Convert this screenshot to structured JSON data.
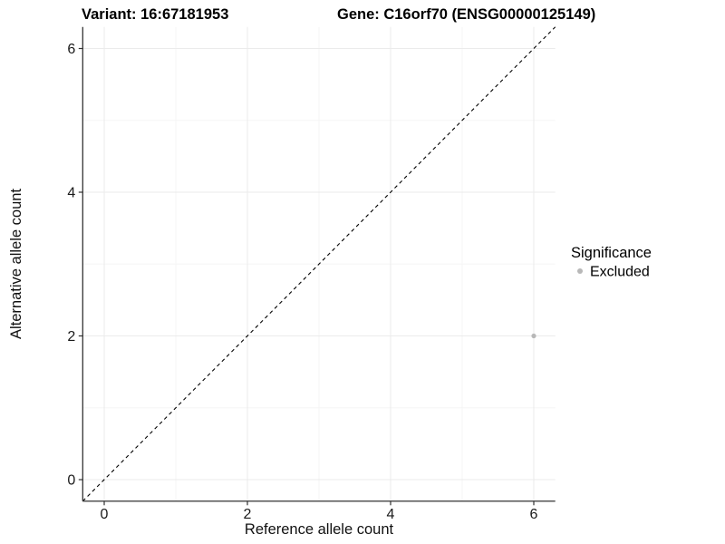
{
  "titles": {
    "variant": "Variant: 16:67181953",
    "gene": "Gene: C16orf70 (ENSG00000125149)"
  },
  "chart_data": {
    "type": "scatter",
    "xlabel": "Reference allele count",
    "ylabel": "Alternative allele count",
    "xlim": [
      -0.3,
      6.3
    ],
    "ylim": [
      -0.3,
      6.3
    ],
    "xticks": [
      0,
      2,
      4,
      6
    ],
    "yticks": [
      0,
      2,
      4,
      6
    ],
    "x_minor_ticks": [
      1,
      3,
      5
    ],
    "y_minor_ticks": [
      1,
      3,
      5
    ],
    "grid": true,
    "series": [
      {
        "name": "Excluded",
        "color": "#b8b8b8",
        "points": [
          [
            6,
            2
          ]
        ],
        "point_radius": 2.6
      }
    ],
    "reference_line": {
      "description": "identity line y = x",
      "style": "dashed",
      "color": "#000000",
      "from": [
        -0.3,
        -0.3
      ],
      "to": [
        6.3,
        6.3
      ]
    },
    "legend": {
      "title": "Significance",
      "position": "right",
      "entries": [
        {
          "label": "Excluded",
          "color": "#b8b8b8"
        }
      ]
    }
  },
  "colors": {
    "background": "#ffffff",
    "grid_major": "#ebebeb",
    "grid_minor": "#f5f5f5",
    "axis_line": "#333333",
    "tick_mark": "#333333",
    "point": "#b8b8b8",
    "text": "#000000"
  }
}
